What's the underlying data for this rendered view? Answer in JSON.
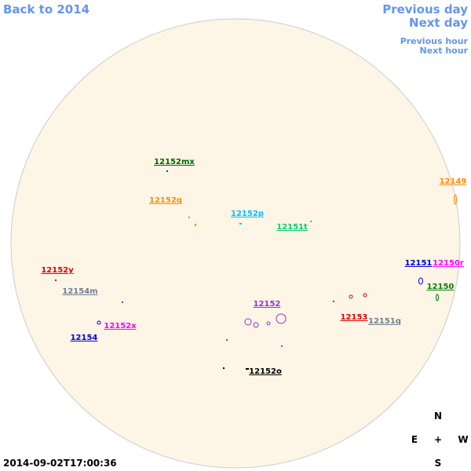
{
  "nav": {
    "back": "Back to 2014",
    "previous_day": "Previous day",
    "next_day": "Next day",
    "previous_hour": "Previous hour",
    "next_hour": "Next hour"
  },
  "regions": [
    {
      "label": "12152mx",
      "color": "#006400"
    },
    {
      "label": "12152q",
      "color": "#ff8c00"
    },
    {
      "label": "12152p",
      "color": "#00bfff"
    },
    {
      "label": "12151t",
      "color": "#00d070"
    },
    {
      "label": "12149",
      "color": "#ff8c00"
    },
    {
      "label": "12152y",
      "color": "#e00000"
    },
    {
      "label": "12154m",
      "color": "#708090"
    },
    {
      "label": "12151",
      "color": "#0000cd"
    },
    {
      "label": "12150r",
      "color": "#ff00ff"
    },
    {
      "label": "12150",
      "color": "#008000"
    },
    {
      "label": "12152",
      "color": "#9932cc"
    },
    {
      "label": "12153",
      "color": "#e00000"
    },
    {
      "label": "12151q",
      "color": "#708090"
    },
    {
      "label": "12152x",
      "color": "#ff00ff"
    },
    {
      "label": "12154",
      "color": "#0000cd"
    },
    {
      "label": "12152o",
      "color": "#000000"
    }
  ],
  "compass": {
    "north": "N",
    "east": "E",
    "center": "+",
    "west": "W",
    "south": "S"
  },
  "timestamp": "2014-09-02T17:00:36"
}
